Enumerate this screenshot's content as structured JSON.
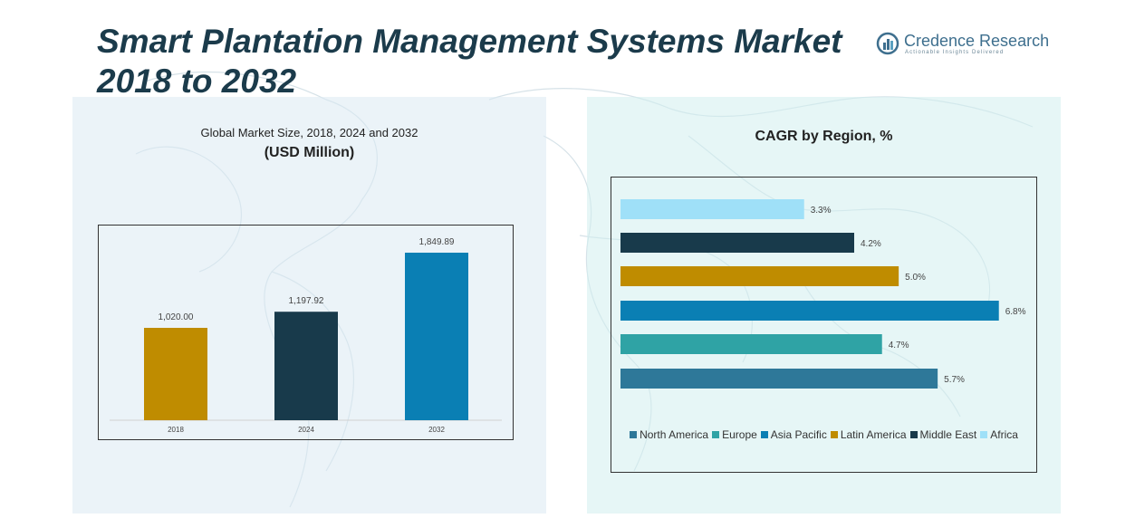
{
  "header": {
    "title_line1": "Smart Plantation Management Systems Market",
    "title_line2": "2018 to 2032"
  },
  "logo": {
    "name_part1": "Credence",
    "name_part2": " Research",
    "tagline": "Actionable Insights Delivered"
  },
  "left_panel": {
    "subtitle": "Global Market Size, 2018, 2024 and 2032",
    "unit": "(USD Million)"
  },
  "right_panel": {
    "subtitle": "CAGR by Region, %"
  },
  "colors": {
    "title": "#1b3b4b",
    "gold": "#bf8c00",
    "dark_navy": "#183a4b",
    "blue": "#0a7fb4",
    "teal": "#2fa3a5",
    "steel_blue": "#2e7899",
    "light_sky": "#9fe0f8"
  },
  "chart_data": [
    {
      "type": "bar",
      "categories": [
        "2018",
        "2024",
        "2032"
      ],
      "values": [
        1020.0,
        1197.92,
        1849.89
      ],
      "value_labels": [
        "1,020.00",
        "1,197.92",
        "1,849.89"
      ],
      "colors": [
        "#bf8c00",
        "#183a4b",
        "#0a7fb4"
      ],
      "title": "Global Market Size, 2018, 2024 and 2032",
      "ylabel": "",
      "ylim": [
        0,
        2000
      ],
      "grid": false
    },
    {
      "type": "bar",
      "orientation": "horizontal",
      "title": "CAGR by Region, %",
      "categories": [
        "Africa",
        "Middle East",
        "Latin America",
        "Asia Pacific",
        "Europe",
        "North America"
      ],
      "values": [
        3.3,
        4.2,
        5.0,
        6.8,
        4.7,
        5.7
      ],
      "value_labels": [
        "3.3%",
        "4.2%",
        "5.0%",
        "6.8%",
        "4.7%",
        "5.7%"
      ],
      "colors": [
        "#9fe0f8",
        "#183a4b",
        "#bf8c00",
        "#0a7fb4",
        "#2fa3a5",
        "#2e7899"
      ],
      "xlim": [
        0,
        7
      ],
      "grid": false,
      "legend": {
        "position": "bottom",
        "entries": [
          {
            "name": "North America",
            "color": "#2e7899"
          },
          {
            "name": "Europe",
            "color": "#2fa3a5"
          },
          {
            "name": "Asia Pacific",
            "color": "#0a7fb4"
          },
          {
            "name": "Latin America",
            "color": "#bf8c00"
          },
          {
            "name": "Middle East",
            "color": "#183a4b"
          },
          {
            "name": "Africa",
            "color": "#9fe0f8"
          }
        ]
      }
    }
  ]
}
